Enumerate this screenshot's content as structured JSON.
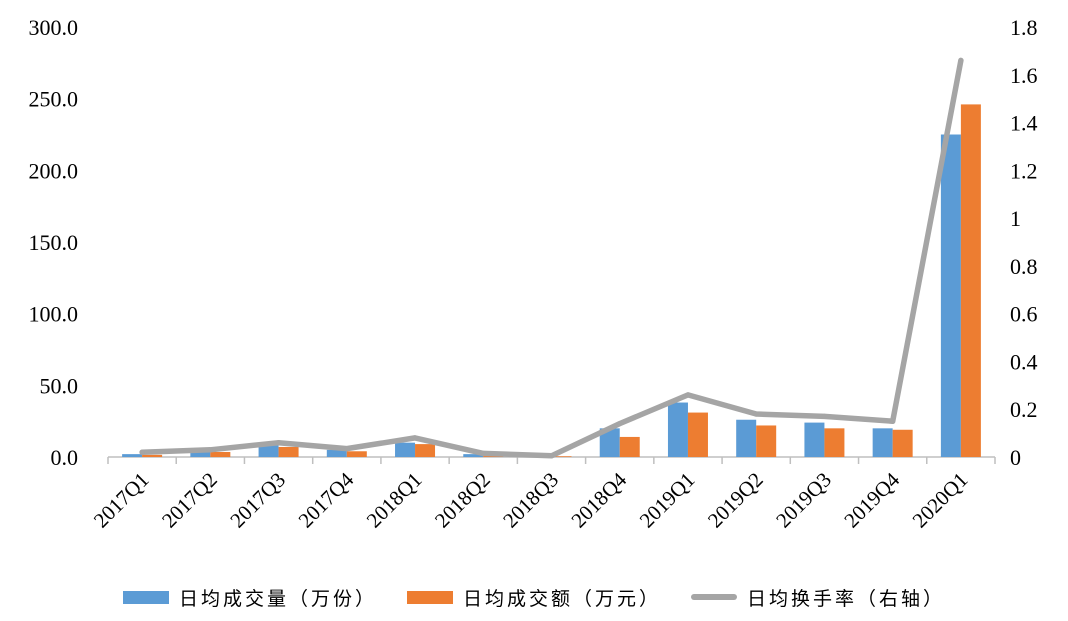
{
  "chart_data": {
    "type": "bar",
    "categories": [
      "2017Q1",
      "2017Q2",
      "2017Q3",
      "2017Q4",
      "2018Q1",
      "2018Q2",
      "2018Q3",
      "2018Q4",
      "2019Q1",
      "2019Q2",
      "2019Q3",
      "2019Q4",
      "2020Q1"
    ],
    "series": [
      {
        "name": "日均成交量（万份）",
        "type": "bar",
        "axis": "left",
        "color": "#5B9BD5",
        "values": [
          2.0,
          4.0,
          8.0,
          5.0,
          10.0,
          2.0,
          1.0,
          20.0,
          38.0,
          26.0,
          24.0,
          20.0,
          225.0
        ]
      },
      {
        "name": "日均成交额（万元）",
        "type": "bar",
        "axis": "left",
        "color": "#ED7D31",
        "values": [
          1.5,
          3.5,
          7.0,
          4.0,
          9.0,
          1.5,
          0.5,
          14.0,
          31.0,
          22.0,
          20.0,
          19.0,
          246.0
        ]
      },
      {
        "name": "日均换手率（右轴）",
        "type": "line",
        "axis": "right",
        "color": "#A5A5A5",
        "values": [
          0.02,
          0.03,
          0.06,
          0.035,
          0.08,
          0.015,
          0.005,
          0.14,
          0.26,
          0.18,
          0.17,
          0.15,
          1.66
        ]
      }
    ],
    "y_left": {
      "min": 0,
      "max": 300,
      "ticks": [
        "0.0",
        "50.0",
        "100.0",
        "150.0",
        "200.0",
        "250.0",
        "300.0"
      ]
    },
    "y_right": {
      "min": 0,
      "max": 1.8,
      "ticks": [
        "0",
        "0.2",
        "0.4",
        "0.6",
        "0.8",
        "1",
        "1.2",
        "1.4",
        "1.6",
        "1.8"
      ]
    },
    "grid": false,
    "legend_position": "bottom"
  }
}
